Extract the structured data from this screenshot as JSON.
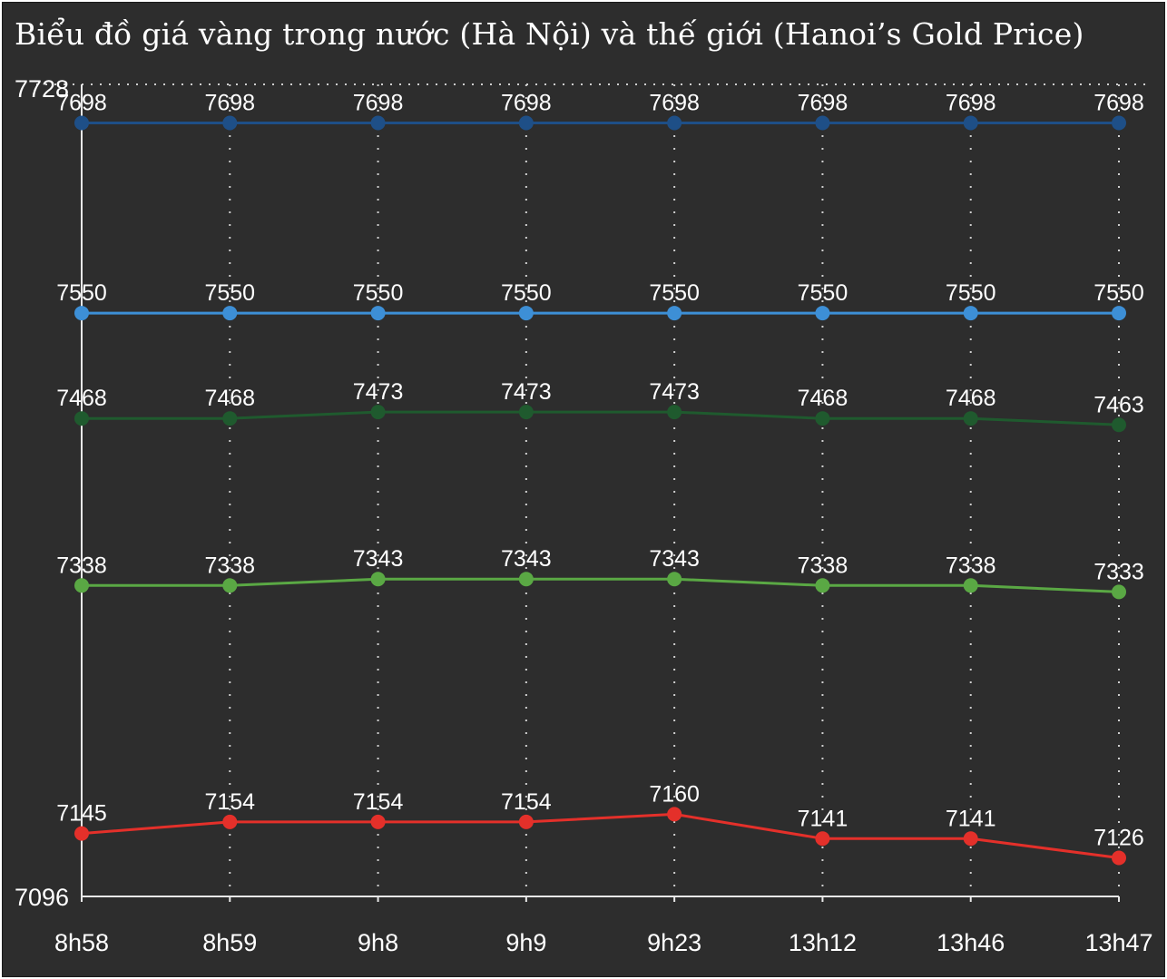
{
  "title": "Biểu đồ giá vàng trong nước (Hà Nội) và thế giới (Hanoi’s Gold Price)",
  "chart_data": {
    "type": "line",
    "title": "Biểu đồ giá vàng trong nước (Hà Nội) và thế giới (Hanoi’s Gold Price)",
    "categories": [
      "8h58",
      "8h59",
      "9h8",
      "9h9",
      "9h23",
      "13h12",
      "13h46",
      "13h47"
    ],
    "ylim": [
      7096,
      7728
    ],
    "y_ticks": [
      "7728",
      "7096"
    ],
    "grid": "vertical dotted lines at each category, dotted line at top",
    "series": [
      {
        "color": "#1e4f87",
        "values": [
          7698,
          7698,
          7698,
          7698,
          7698,
          7698,
          7698,
          7698
        ]
      },
      {
        "color": "#3d8fd6",
        "values": [
          7550,
          7550,
          7550,
          7550,
          7550,
          7550,
          7550,
          7550
        ]
      },
      {
        "color": "#1f5a2e",
        "values": [
          7468,
          7468,
          7473,
          7473,
          7473,
          7468,
          7468,
          7463
        ]
      },
      {
        "color": "#5aa844",
        "values": [
          7338,
          7338,
          7343,
          7343,
          7343,
          7338,
          7338,
          7333
        ]
      },
      {
        "color": "#e4302a",
        "values": [
          7145,
          7154,
          7154,
          7154,
          7160,
          7141,
          7141,
          7126
        ]
      }
    ]
  }
}
